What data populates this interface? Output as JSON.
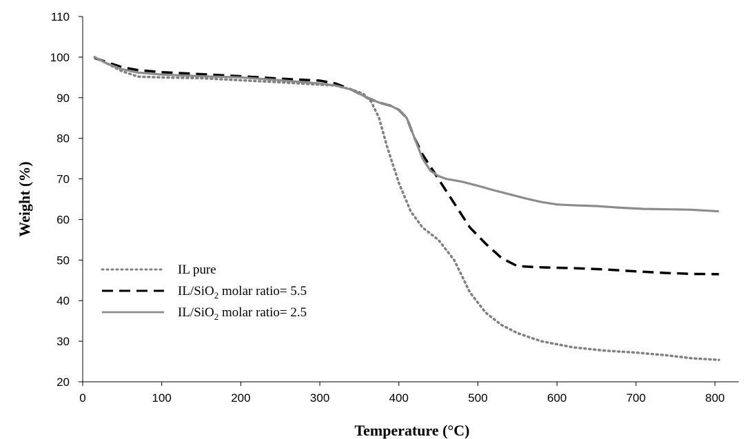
{
  "chart_data": {
    "type": "line",
    "title": "",
    "xlabel": "Temperature (°C)",
    "ylabel": "Weight (%)",
    "xlim": [
      0,
      830
    ],
    "ylim": [
      20,
      110
    ],
    "xticks": [
      0,
      100,
      200,
      300,
      400,
      500,
      600,
      700,
      800
    ],
    "yticks": [
      20,
      30,
      40,
      50,
      60,
      70,
      80,
      90,
      100,
      110
    ],
    "grid": false,
    "legend_position": "bottom-left",
    "series": [
      {
        "name": "IL pure",
        "style": "dotted",
        "color": "#808080",
        "points": [
          [
            15,
            100
          ],
          [
            30,
            98.5
          ],
          [
            50,
            96.5
          ],
          [
            70,
            95.2
          ],
          [
            100,
            95
          ],
          [
            150,
            94.8
          ],
          [
            200,
            94.3
          ],
          [
            250,
            93.8
          ],
          [
            300,
            93.2
          ],
          [
            320,
            93
          ],
          [
            340,
            92
          ],
          [
            355,
            91
          ],
          [
            365,
            89
          ],
          [
            375,
            85
          ],
          [
            385,
            78
          ],
          [
            400,
            69
          ],
          [
            415,
            62
          ],
          [
            430,
            58
          ],
          [
            450,
            55
          ],
          [
            470,
            50
          ],
          [
            490,
            42
          ],
          [
            510,
            37
          ],
          [
            530,
            34
          ],
          [
            550,
            32
          ],
          [
            580,
            30
          ],
          [
            620,
            28.5
          ],
          [
            660,
            27.7
          ],
          [
            700,
            27.2
          ],
          [
            740,
            26.5
          ],
          [
            770,
            25.8
          ],
          [
            805,
            25.4
          ]
        ]
      },
      {
        "name": "IL/SiO2 molar ratio= 5.5",
        "style": "dashed",
        "color": "#000000",
        "points": [
          [
            15,
            99.8
          ],
          [
            30,
            98.8
          ],
          [
            50,
            97.5
          ],
          [
            70,
            96.8
          ],
          [
            100,
            96.3
          ],
          [
            150,
            95.8
          ],
          [
            200,
            95.3
          ],
          [
            250,
            94.7
          ],
          [
            280,
            94.4
          ],
          [
            300,
            94.2
          ],
          [
            320,
            93.5
          ],
          [
            340,
            92
          ],
          [
            360,
            90
          ],
          [
            375,
            88.8
          ],
          [
            390,
            88
          ],
          [
            400,
            87
          ],
          [
            410,
            85
          ],
          [
            420,
            80
          ],
          [
            430,
            76
          ],
          [
            440,
            73
          ],
          [
            450,
            70
          ],
          [
            470,
            64
          ],
          [
            490,
            58
          ],
          [
            510,
            54
          ],
          [
            530,
            50.5
          ],
          [
            550,
            48.5
          ],
          [
            580,
            48.2
          ],
          [
            620,
            48
          ],
          [
            660,
            47.7
          ],
          [
            700,
            47.2
          ],
          [
            740,
            46.8
          ],
          [
            770,
            46.6
          ],
          [
            805,
            46.5
          ]
        ]
      },
      {
        "name": "IL/SiO2 molar ratio= 2.5",
        "style": "solid",
        "color": "#8c8c8c",
        "points": [
          [
            15,
            100
          ],
          [
            30,
            98.5
          ],
          [
            50,
            97
          ],
          [
            70,
            96.2
          ],
          [
            100,
            95.7
          ],
          [
            150,
            95.3
          ],
          [
            200,
            95
          ],
          [
            250,
            94.3
          ],
          [
            300,
            93.5
          ],
          [
            320,
            93
          ],
          [
            340,
            92
          ],
          [
            360,
            90
          ],
          [
            375,
            88.8
          ],
          [
            390,
            88
          ],
          [
            400,
            87
          ],
          [
            410,
            85
          ],
          [
            420,
            80
          ],
          [
            430,
            75
          ],
          [
            440,
            72
          ],
          [
            450,
            70.7
          ],
          [
            460,
            70
          ],
          [
            480,
            69.3
          ],
          [
            500,
            68.3
          ],
          [
            520,
            67.2
          ],
          [
            540,
            66.2
          ],
          [
            560,
            65.2
          ],
          [
            580,
            64.3
          ],
          [
            600,
            63.7
          ],
          [
            620,
            63.5
          ],
          [
            650,
            63.3
          ],
          [
            680,
            62.9
          ],
          [
            710,
            62.6
          ],
          [
            740,
            62.5
          ],
          [
            770,
            62.4
          ],
          [
            805,
            62
          ]
        ]
      }
    ]
  },
  "legend": [
    {
      "main": "IL pure",
      "sub": "",
      "tail": ""
    },
    {
      "main": "IL/SiO",
      "sub": "2",
      "tail": " molar ratio= 5.5"
    },
    {
      "main": "IL/SiO",
      "sub": "2",
      "tail": " molar ratio= 2.5"
    }
  ],
  "colors": {
    "axis": "#000000",
    "ilPure": "#808080",
    "ratio55": "#000000",
    "ratio25": "#8c8c8c"
  }
}
